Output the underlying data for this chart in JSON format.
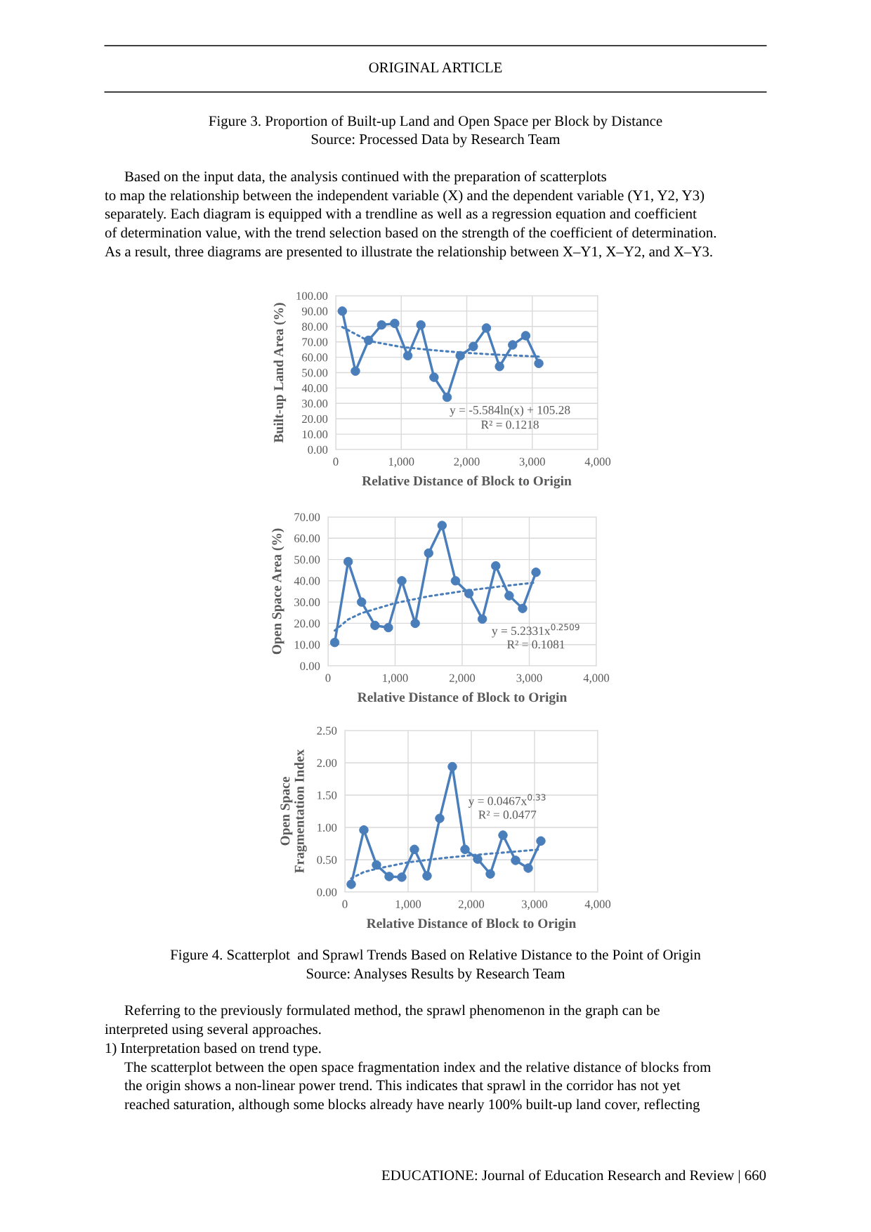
{
  "chart_data": [
    {
      "type": "line",
      "ylabel": "Built-up Land Area (%)",
      "xlabel": "Relative Distance of Block to Origin",
      "annotations": [
        "ORIGINAL ARTICLE",
        "Figure 3. Proportion of Built-up Land and Open Space per Block by Distance",
        "Source: Processed Data by Research Team",
        "Based on the input data, the analysis continued with the preparation of scatterplots",
        "to map the relationship between the independent variable (X) and the dependent variable (Y1, Y2, Y3)",
        "separately. Each diagram is equipped with a trendline as well as a regression equation and coefficient",
        "of determination value, with the trend selection based on the strength of the coefficient of determination.",
        "As a result, three diagrams are presented to illustrate the relationship between X–Y1, X–Y2, and X–Y3.",
        "y = -5.584ln(x) + 105.28",
        "R² = 0.1218"
      ],
      "series": [
        {
          "color": "#4a7ebb",
          "marker": "circle",
          "line_style": "solid",
          "x": [
            100,
            300,
            500,
            700,
            900,
            1100,
            1300,
            1500,
            1700,
            1900,
            2100,
            2300,
            2500,
            2700,
            2900,
            3100
          ],
          "values": [
            90,
            51,
            71,
            81,
            82,
            61,
            81,
            47,
            34,
            61,
            67,
            79,
            54,
            68,
            74,
            56
          ]
        },
        {
          "color": "#4a7ebb",
          "marker": "none",
          "line_style": "dotted",
          "x": [
            100,
            500,
            1000,
            1500,
            2000,
            2500,
            3100
          ],
          "values": [
            79.6,
            70.6,
            66.7,
            64.5,
            62.8,
            61.6,
            60.4
          ]
        }
      ],
      "xlim": [
        0,
        4000
      ],
      "xticks": [
        0,
        {
          "value": 1000,
          "label": "1,000"
        },
        {
          "value": 2000,
          "label": "2,000"
        },
        {
          "value": 3000,
          "label": "3,000"
        },
        {
          "value": 4000,
          "label": "4,000"
        }
      ],
      "ylim": [
        0,
        100
      ],
      "yticks": [
        {
          "value": 0,
          "label": "0.00"
        },
        {
          "value": 10,
          "label": "10.00"
        },
        {
          "value": 20,
          "label": "20.00"
        },
        {
          "value": 30,
          "label": "30.00"
        },
        {
          "value": 40,
          "label": "40.00"
        },
        {
          "value": 50,
          "label": "50.00"
        },
        {
          "value": 60,
          "label": "60.00"
        },
        {
          "value": 70,
          "label": "70.00"
        },
        {
          "value": 80,
          "label": "80.00"
        },
        {
          "value": 90,
          "label": "90.00"
        },
        {
          "value": 100,
          "label": "100.00"
        }
      ],
      "grid": true
    },
    {
      "type": "line",
      "ylabel": "Open Space Area (%)",
      "xlabel": "Relative Distance of Block to Origin",
      "annotations": [
        "y = 5.2331x$^{0.2509}$",
        "R² = 0.1081"
      ],
      "series": [
        {
          "color": "#4a7ebb",
          "marker": "circle",
          "line_style": "solid",
          "x": [
            100,
            300,
            500,
            700,
            900,
            1100,
            1300,
            1500,
            1700,
            1900,
            2100,
            2300,
            2500,
            2700,
            2900,
            3100
          ],
          "values": [
            11,
            49,
            30,
            19,
            18,
            40,
            20,
            53,
            66,
            40,
            34,
            22,
            47,
            33,
            27,
            44
          ]
        },
        {
          "color": "#4a7ebb",
          "marker": "none",
          "line_style": "dotted",
          "x": [
            100,
            300,
            500,
            1000,
            1500,
            2000,
            2500,
            3100
          ],
          "values": [
            16.6,
            21.8,
            24.8,
            29.5,
            32.7,
            35.1,
            37.1,
            39.2
          ]
        }
      ],
      "xlim": [
        0,
        4000
      ],
      "xticks": [
        0,
        {
          "value": 1000,
          "label": "1,000"
        },
        {
          "value": 2000,
          "label": "2,000"
        },
        {
          "value": 3000,
          "label": "3,000"
        },
        {
          "value": 4000,
          "label": "4,000"
        }
      ],
      "ylim": [
        0,
        70
      ],
      "yticks": [
        {
          "value": 0,
          "label": "0.00"
        },
        {
          "value": 10,
          "label": "10.00"
        },
        {
          "value": 20,
          "label": "20.00"
        },
        {
          "value": 30,
          "label": "30.00"
        },
        {
          "value": 40,
          "label": "40.00"
        },
        {
          "value": 50,
          "label": "50.00"
        },
        {
          "value": 60,
          "label": "60.00"
        },
        {
          "value": 70,
          "label": "70.00"
        }
      ],
      "grid": true
    },
    {
      "type": "line",
      "ylabel": "Open Space\nFragmentation Index",
      "xlabel": "Relative Distance of Block to Origin",
      "annotations": [
        "y = 0.0467x$^{0.33}$",
        "R² = 0.0477",
        "Figure 4. Scatterplot  and Sprawl Trends Based on Relative Distance to the Point of Origin",
        "Source: Analyses Results by Research Team",
        "Referring to the previously formulated method, the sprawl phenomenon in the graph can be",
        "interpreted using several approaches.",
        "1) Interpretation based on trend type.",
        "The scatterplot between the open space fragmentation index and the relative distance of blocks from",
        "the origin shows a non-linear power trend. This indicates that sprawl in the corridor has not yet",
        "reached saturation, although some blocks already have nearly 100% built-up land cover, reflecting",
        "EDUCATIONE: Journal of Education Research and Review | 660"
      ],
      "series": [
        {
          "color": "#4a7ebb",
          "marker": "circle",
          "line_style": "solid",
          "x": [
            100,
            300,
            500,
            700,
            900,
            1100,
            1300,
            1500,
            1700,
            1900,
            2100,
            2300,
            2500,
            2700,
            2900,
            3100
          ],
          "values": [
            0.12,
            0.96,
            0.42,
            0.24,
            0.23,
            0.66,
            0.25,
            1.14,
            1.94,
            0.66,
            0.51,
            0.28,
            0.88,
            0.49,
            0.37,
            0.79
          ]
        },
        {
          "color": "#4a7ebb",
          "marker": "none",
          "line_style": "dotted",
          "x": [
            100,
            300,
            500,
            1000,
            1500,
            2000,
            2500,
            3100
          ],
          "values": [
            0.21,
            0.31,
            0.36,
            0.46,
            0.52,
            0.57,
            0.61,
            0.66
          ]
        }
      ],
      "xlim": [
        0,
        4000
      ],
      "xticks": [
        0,
        {
          "value": 1000,
          "label": "1,000"
        },
        {
          "value": 2000,
          "label": "2,000"
        },
        {
          "value": 3000,
          "label": "3,000"
        },
        {
          "value": 4000,
          "label": "4,000"
        }
      ],
      "ylim": [
        0,
        2.5
      ],
      "yticks": [
        {
          "value": 0,
          "label": "0.00"
        },
        {
          "value": 0.5,
          "label": "0.50"
        },
        {
          "value": 1,
          "label": "1.00"
        },
        {
          "value": 1.5,
          "label": "1.50"
        },
        {
          "value": 2,
          "label": "2.00"
        },
        {
          "value": 2.5,
          "label": "2.50"
        }
      ],
      "grid": true
    }
  ]
}
